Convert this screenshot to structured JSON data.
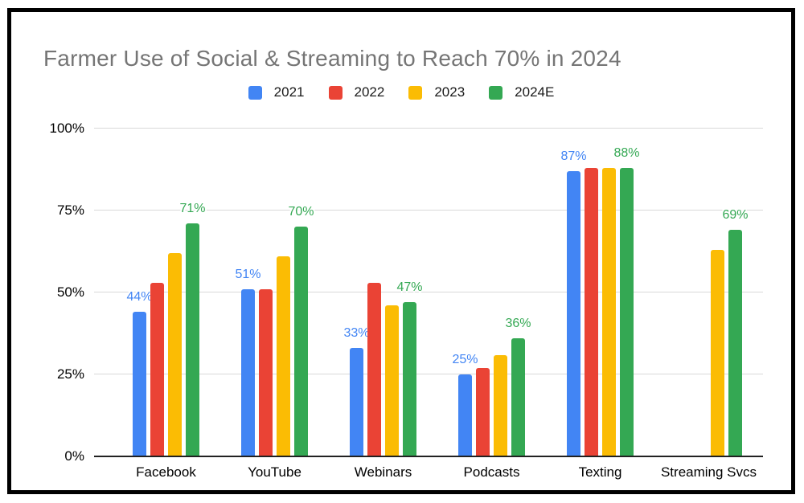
{
  "chart_data": {
    "type": "bar",
    "title": "Farmer Use of Social & Streaming to Reach 70% in 2024",
    "categories": [
      "Facebook",
      "YouTube",
      "Webinars",
      "Podcasts",
      "Texting",
      "Streaming Svcs"
    ],
    "series": [
      {
        "name": "2021",
        "color": "#4285F4",
        "values": [
          44,
          51,
          33,
          25,
          87,
          null
        ]
      },
      {
        "name": "2022",
        "color": "#EA4335",
        "values": [
          53,
          51,
          53,
          27,
          88,
          null
        ]
      },
      {
        "name": "2023",
        "color": "#FBBC04",
        "values": [
          62,
          61,
          46,
          31,
          88,
          63
        ]
      },
      {
        "name": "2024E",
        "color": "#34A853",
        "values": [
          71,
          70,
          47,
          36,
          88,
          69
        ]
      }
    ],
    "data_labels": [
      {
        "series": "2021",
        "labels": [
          "44%",
          "51%",
          "33%",
          "25%",
          "87%",
          null
        ]
      },
      {
        "series": "2024E",
        "labels": [
          "71%",
          "70%",
          "47%",
          "36%",
          "88%",
          "69%"
        ]
      }
    ],
    "yticks": [
      {
        "value": 100,
        "label": "100%"
      },
      {
        "value": 75,
        "label": "75%"
      },
      {
        "value": 50,
        "label": "50%"
      },
      {
        "value": 25,
        "label": "25%"
      },
      {
        "value": 0,
        "label": "0%"
      }
    ],
    "ylim": [
      0,
      100
    ],
    "xlabel": "",
    "ylabel": "",
    "grid": true,
    "legend_position": "top",
    "colors": {
      "title_text": "#757575",
      "axis_text": "#000000",
      "legend_text": "#1a1a1a",
      "gridline": "#d9d9d9",
      "baseline": "#212121",
      "frame_border": "#000000",
      "background": "#ffffff"
    }
  }
}
